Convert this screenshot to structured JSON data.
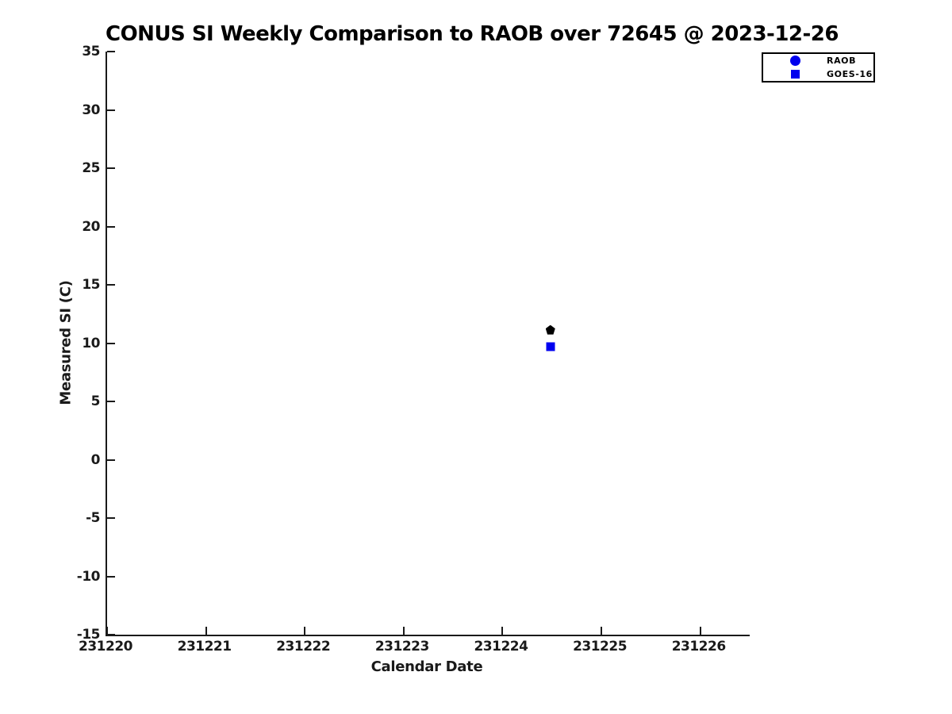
{
  "chart_data": {
    "type": "scatter",
    "title": "CONUS SI Weekly Comparison to RAOB over 72645 @ 2023-12-26",
    "xlabel": "Calendar Date",
    "ylabel": "Measured SI (C)",
    "xlim": [
      231220,
      231226.5
    ],
    "ylim": [
      -15,
      35
    ],
    "x_ticks": [
      231220,
      231221,
      231222,
      231223,
      231224,
      231225,
      231226
    ],
    "y_ticks": [
      35,
      30,
      25,
      20,
      15,
      10,
      5,
      0,
      -5,
      -10,
      -15
    ],
    "grid": false,
    "legend_position": "top-right",
    "series": [
      {
        "name": "RAOB",
        "plot_marker": "pentagon",
        "plot_marker_color": "#000000",
        "legend_marker": "circle",
        "legend_marker_color": "#0000ee",
        "marker_size_px": 12,
        "points": [
          {
            "x": 231224.5,
            "y": 11.15
          }
        ]
      },
      {
        "name": "GOES-16",
        "plot_marker": "square",
        "plot_marker_color": "#0000f0",
        "legend_marker": "square",
        "legend_marker_color": "#0000ee",
        "marker_size_px": 11,
        "points": [
          {
            "x": 231224.5,
            "y": 9.7
          }
        ]
      }
    ]
  },
  "colors": {
    "axis": "#1a1a1a",
    "title_text": "#000000",
    "background": "#ffffff"
  }
}
